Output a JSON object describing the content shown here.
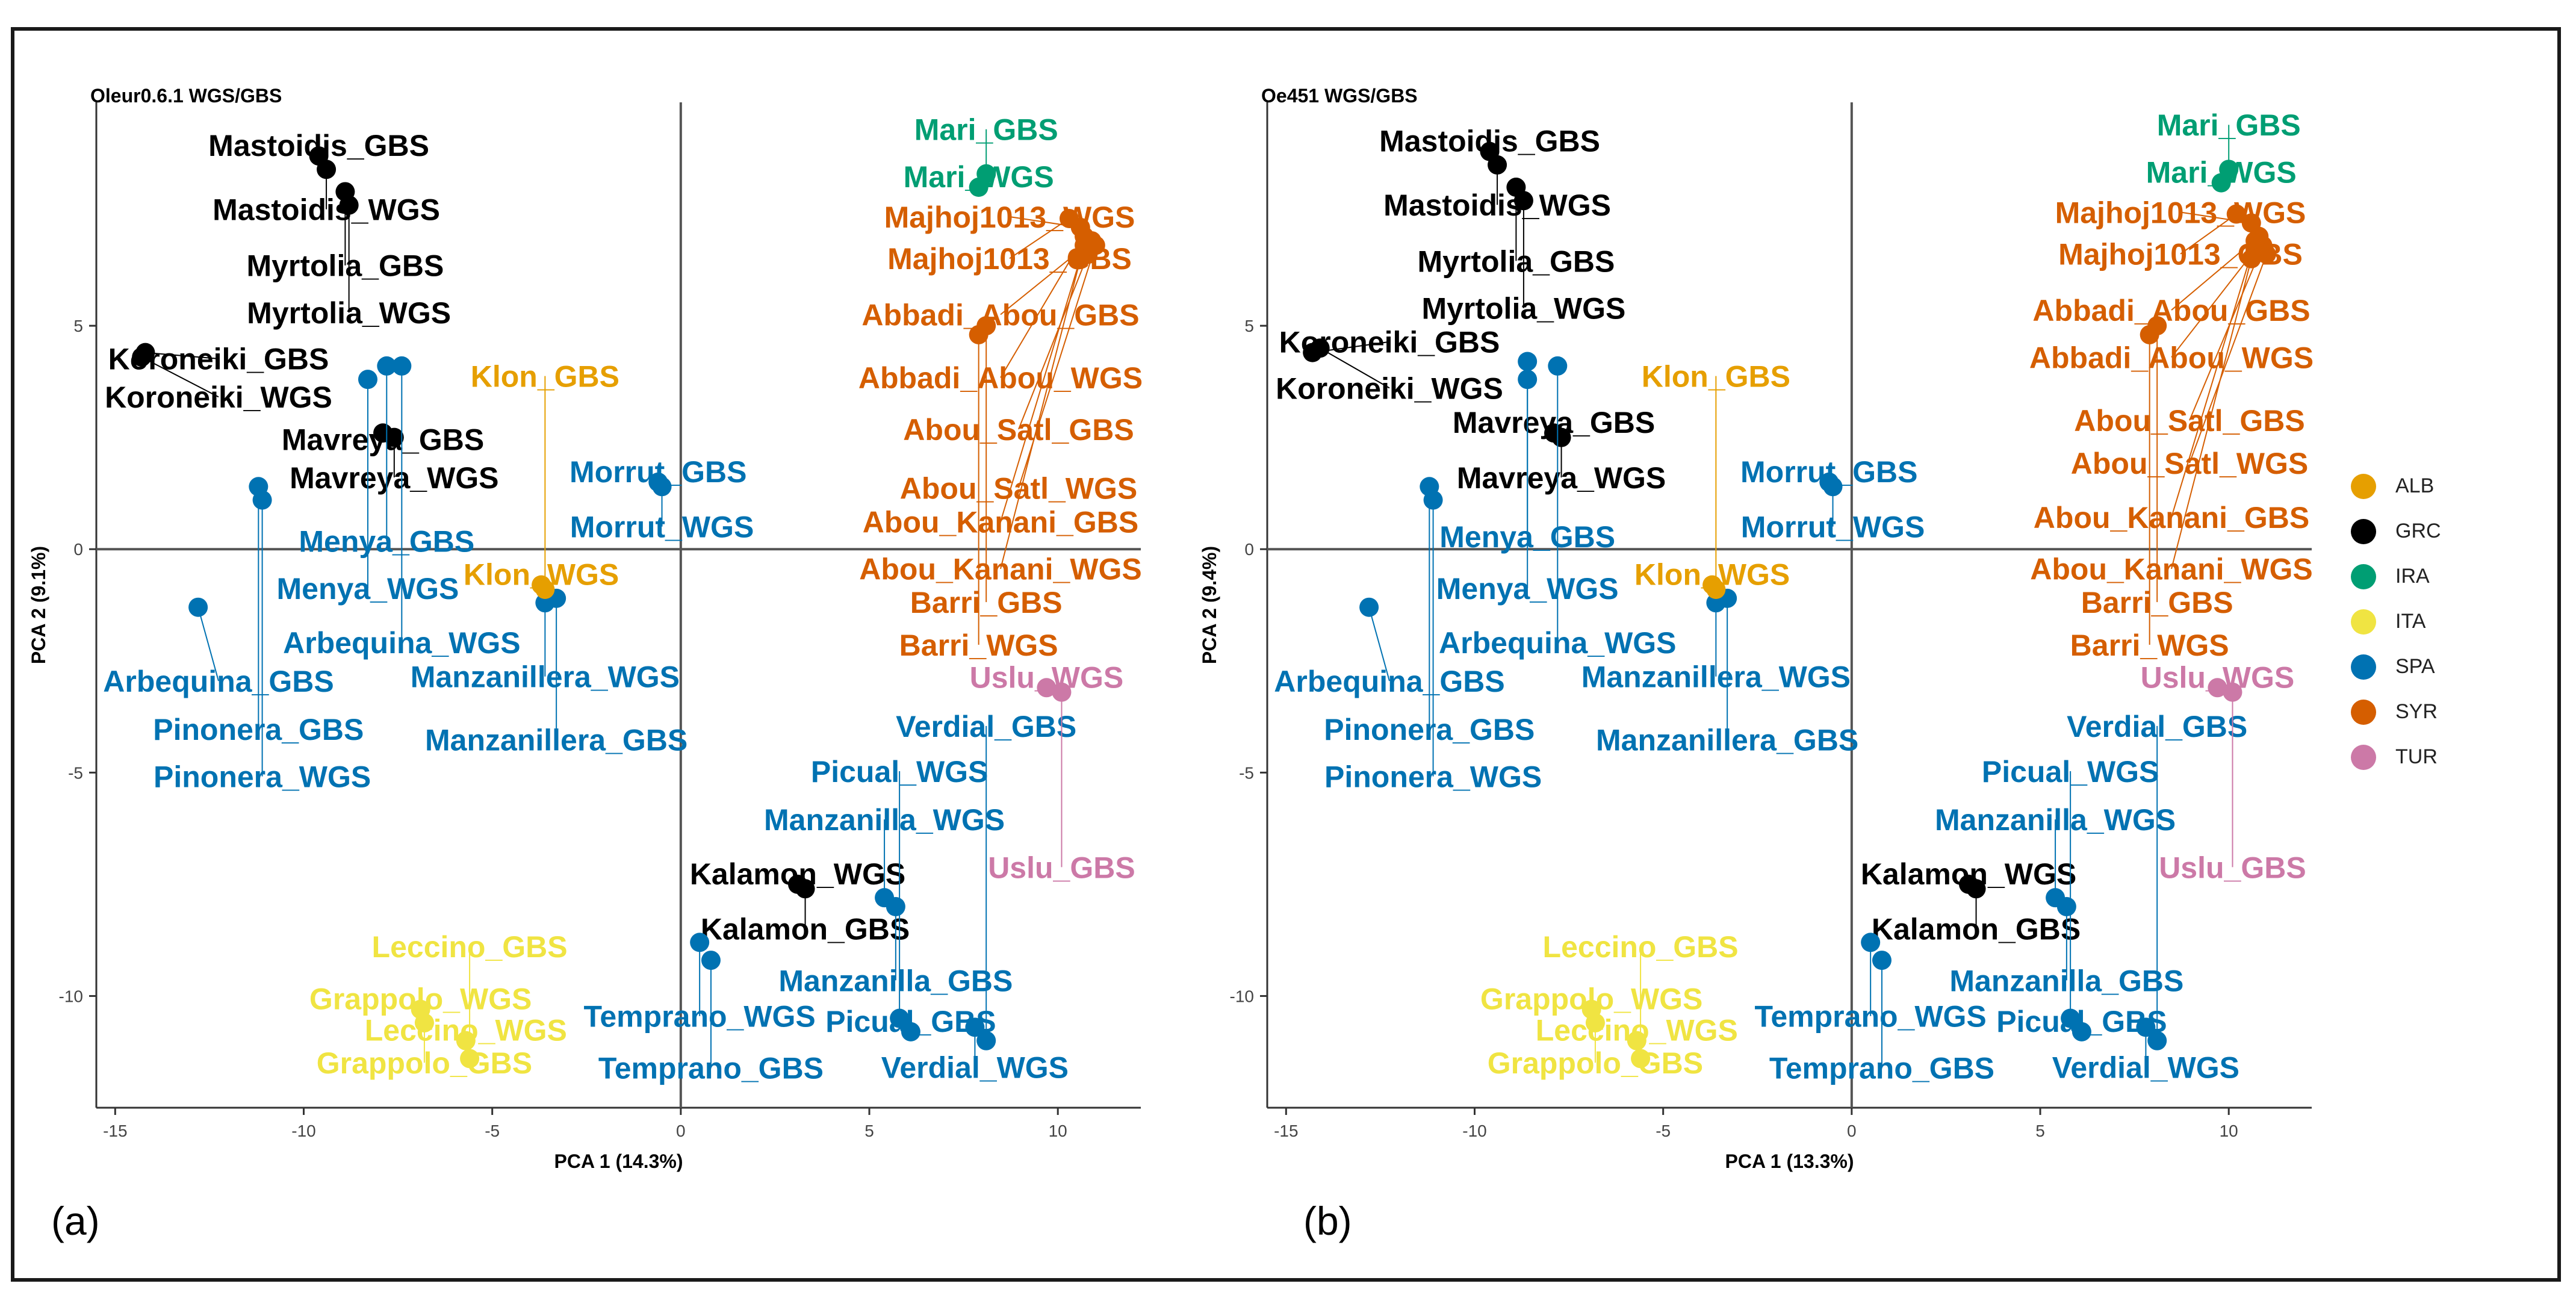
{
  "figure": {
    "panel_labels": [
      "(a)",
      "(b)"
    ]
  },
  "legend": [
    {
      "group": "ALB",
      "color": "#E69F00"
    },
    {
      "group": "GRC",
      "color": "#000000"
    },
    {
      "group": "IRA",
      "color": "#009E73"
    },
    {
      "group": "ITA",
      "color": "#F0E442"
    },
    {
      "group": "SPA",
      "color": "#0072B2"
    },
    {
      "group": "SYR",
      "color": "#D55E00"
    },
    {
      "group": "TUR",
      "color": "#CC79A7"
    }
  ],
  "chart_data": [
    {
      "type": "scatter",
      "title": "Oleur0.6.1 WGS/GBS",
      "xlabel": "PCA 1 (14.3%)",
      "ylabel": "PCA 2 (9.1%)",
      "xlim": [
        -15.5,
        12.2
      ],
      "ylim": [
        -12.5,
        10
      ],
      "xticks": [
        -15,
        -10,
        -5,
        0,
        5,
        10
      ],
      "yticks": [
        -10,
        -5,
        0,
        5
      ],
      "points": [
        {
          "label": "Mastoidis_GBS",
          "group": "GRC",
          "x": -9.6,
          "y": 8.8
        },
        {
          "label": "Mastoidis_WGS",
          "group": "GRC",
          "x": -9.4,
          "y": 8.5
        },
        {
          "label": "Myrtolia_GBS",
          "group": "GRC",
          "x": -8.9,
          "y": 8.0
        },
        {
          "label": "Myrtolia_WGS",
          "group": "GRC",
          "x": -8.8,
          "y": 7.7
        },
        {
          "label": "Koroneiki_GBS",
          "group": "GRC",
          "x": -14.2,
          "y": 4.4
        },
        {
          "label": "Koroneiki_WGS",
          "group": "GRC",
          "x": -14.3,
          "y": 4.3
        },
        {
          "label": "Mavreya_GBS",
          "group": "GRC",
          "x": -7.9,
          "y": 2.6
        },
        {
          "label": "Mavreya_WGS",
          "group": "GRC",
          "x": -7.6,
          "y": 2.5
        },
        {
          "label": "Kalamon_WGS",
          "group": "GRC",
          "x": 3.1,
          "y": -7.5
        },
        {
          "label": "Kalamon_GBS",
          "group": "GRC",
          "x": 3.3,
          "y": -7.6
        },
        {
          "label": "Mari_WGS",
          "group": "IRA",
          "x": 7.9,
          "y": 8.1
        },
        {
          "label": "Mari_GBS",
          "group": "IRA",
          "x": 8.1,
          "y": 8.4
        },
        {
          "label": "Majhoj1013_WGS",
          "group": "SYR",
          "x": 10.6,
          "y": 7.2
        },
        {
          "label": "Majhoj1013_GBS",
          "group": "SYR",
          "x": 10.3,
          "y": 7.4
        },
        {
          "label": "Abbadi_Abou_GBS",
          "group": "SYR",
          "x": 10.9,
          "y": 6.9
        },
        {
          "label": "Abbadi_Abou_WGS",
          "group": "SYR",
          "x": 10.7,
          "y": 7.0
        },
        {
          "label": "Abou_Satl_GBS",
          "group": "SYR",
          "x": 10.8,
          "y": 6.6
        },
        {
          "label": "Abou_Satl_WGS",
          "group": "SYR",
          "x": 11.0,
          "y": 6.8
        },
        {
          "label": "Abou_Kanani_GBS",
          "group": "SYR",
          "x": 10.7,
          "y": 6.8
        },
        {
          "label": "Abou_Kanani_WGS",
          "group": "SYR",
          "x": 10.6,
          "y": 6.5
        },
        {
          "label": "Barri_GBS",
          "group": "SYR",
          "x": 8.1,
          "y": 5.0
        },
        {
          "label": "Barri_WGS",
          "group": "SYR",
          "x": 7.9,
          "y": 4.8
        },
        {
          "label": "Menya_GBS",
          "group": "SPA",
          "x": -7.8,
          "y": 4.1
        },
        {
          "label": "Menya_WGS",
          "group": "SPA",
          "x": -8.3,
          "y": 3.8
        },
        {
          "label": "Arbequina_WGS",
          "group": "SPA",
          "x": -7.4,
          "y": 4.1
        },
        {
          "label": "Arbequina_GBS",
          "group": "SPA",
          "x": -12.8,
          "y": -1.3
        },
        {
          "label": "Pinonera_GBS",
          "group": "SPA",
          "x": -11.2,
          "y": 1.4
        },
        {
          "label": "Pinonera_WGS",
          "group": "SPA",
          "x": -11.1,
          "y": 1.1
        },
        {
          "label": "Morrut_GBS",
          "group": "SPA",
          "x": -0.6,
          "y": 1.5
        },
        {
          "label": "Morrut_WGS",
          "group": "SPA",
          "x": -0.5,
          "y": 1.4
        },
        {
          "label": "Manzanillera_WGS",
          "group": "SPA",
          "x": -3.6,
          "y": -1.2
        },
        {
          "label": "Manzanillera_GBS",
          "group": "SPA",
          "x": -3.3,
          "y": -1.1
        },
        {
          "label": "Manzanilla_WGS",
          "group": "SPA",
          "x": 5.4,
          "y": -7.8
        },
        {
          "label": "Manzanilla_GBS",
          "group": "SPA",
          "x": 5.7,
          "y": -8.0
        },
        {
          "label": "Temprano_WGS",
          "group": "SPA",
          "x": 0.5,
          "y": -8.8
        },
        {
          "label": "Temprano_GBS",
          "group": "SPA",
          "x": 0.8,
          "y": -9.2
        },
        {
          "label": "Picual_WGS",
          "group": "SPA",
          "x": 5.8,
          "y": -10.5
        },
        {
          "label": "Picual_GBS",
          "group": "SPA",
          "x": 6.1,
          "y": -10.8
        },
        {
          "label": "Verdial_WGS",
          "group": "SPA",
          "x": 7.8,
          "y": -10.7
        },
        {
          "label": "Verdial_GBS",
          "group": "SPA",
          "x": 8.1,
          "y": -11.0
        },
        {
          "label": "Klon_WGS",
          "group": "ALB",
          "x": -3.7,
          "y": -0.8
        },
        {
          "label": "Klon_GBS",
          "group": "ALB",
          "x": -3.6,
          "y": -0.9
        },
        {
          "label": "Uslu_WGS",
          "group": "TUR",
          "x": 9.7,
          "y": -3.1
        },
        {
          "label": "Uslu_GBS",
          "group": "TUR",
          "x": 10.1,
          "y": -3.2
        },
        {
          "label": "Grappolo_WGS",
          "group": "ITA",
          "x": -6.9,
          "y": -10.3
        },
        {
          "label": "Grappolo_GBS",
          "group": "ITA",
          "x": -6.8,
          "y": -10.6
        },
        {
          "label": "Leccino_WGS",
          "group": "ITA",
          "x": -5.7,
          "y": -11.0
        },
        {
          "label": "Leccino_GBS",
          "group": "ITA",
          "x": -5.6,
          "y": -11.4
        }
      ]
    },
    {
      "type": "scatter",
      "title": "Oe451 WGS/GBS",
      "xlabel": "PCA 1 (13.3%)",
      "ylabel": "PCA 2 (9.4%)",
      "xlim": [
        -15.5,
        12.2
      ],
      "ylim": [
        -12.5,
        10
      ],
      "xticks": [
        -15,
        -10,
        -5,
        0,
        5,
        10
      ],
      "yticks": [
        -10,
        -5,
        0,
        5
      ],
      "points": [
        {
          "label": "Mastoidis_GBS",
          "group": "GRC",
          "x": -9.6,
          "y": 8.9
        },
        {
          "label": "Mastoidis_WGS",
          "group": "GRC",
          "x": -9.4,
          "y": 8.6
        },
        {
          "label": "Myrtolia_GBS",
          "group": "GRC",
          "x": -8.9,
          "y": 8.1
        },
        {
          "label": "Myrtolia_WGS",
          "group": "GRC",
          "x": -8.7,
          "y": 7.8
        },
        {
          "label": "Koroneiki_GBS",
          "group": "GRC",
          "x": -14.3,
          "y": 4.4
        },
        {
          "label": "Koroneiki_WGS",
          "group": "GRC",
          "x": -14.1,
          "y": 4.5
        },
        {
          "label": "Mavreya_GBS",
          "group": "GRC",
          "x": -7.9,
          "y": 2.6
        },
        {
          "label": "Mavreya_WGS",
          "group": "GRC",
          "x": -7.7,
          "y": 2.5
        },
        {
          "label": "Kalamon_WGS",
          "group": "GRC",
          "x": 3.1,
          "y": -7.5
        },
        {
          "label": "Kalamon_GBS",
          "group": "GRC",
          "x": 3.3,
          "y": -7.6
        },
        {
          "label": "Mari_WGS",
          "group": "IRA",
          "x": 9.8,
          "y": 8.2
        },
        {
          "label": "Mari_GBS",
          "group": "IRA",
          "x": 10.0,
          "y": 8.5
        },
        {
          "label": "Majhoj1013_WGS",
          "group": "SYR",
          "x": 10.6,
          "y": 7.3
        },
        {
          "label": "Majhoj1013_GBS",
          "group": "SYR",
          "x": 10.2,
          "y": 7.5
        },
        {
          "label": "Abbadi_Abou_GBS",
          "group": "SYR",
          "x": 10.8,
          "y": 7.0
        },
        {
          "label": "Abbadi_Abou_WGS",
          "group": "SYR",
          "x": 10.7,
          "y": 6.7
        },
        {
          "label": "Abou_Satl_GBS",
          "group": "SYR",
          "x": 10.9,
          "y": 6.8
        },
        {
          "label": "Abou_Satl_WGS",
          "group": "SYR",
          "x": 11.0,
          "y": 6.6
        },
        {
          "label": "Abou_Kanani_GBS",
          "group": "SYR",
          "x": 10.7,
          "y": 6.9
        },
        {
          "label": "Abou_Kanani_WGS",
          "group": "SYR",
          "x": 10.6,
          "y": 6.5
        },
        {
          "label": "Barri_GBS",
          "group": "SYR",
          "x": 8.1,
          "y": 5.0
        },
        {
          "label": "Barri_WGS",
          "group": "SYR",
          "x": 7.9,
          "y": 4.8
        },
        {
          "label": "Menya_GBS",
          "group": "SPA",
          "x": -8.6,
          "y": 4.2
        },
        {
          "label": "Menya_WGS",
          "group": "SPA",
          "x": -8.6,
          "y": 3.8
        },
        {
          "label": "Arbequina_WGS",
          "group": "SPA",
          "x": -7.8,
          "y": 4.1
        },
        {
          "label": "Arbequina_GBS",
          "group": "SPA",
          "x": -12.8,
          "y": -1.3
        },
        {
          "label": "Pinonera_GBS",
          "group": "SPA",
          "x": -11.2,
          "y": 1.4
        },
        {
          "label": "Pinonera_WGS",
          "group": "SPA",
          "x": -11.1,
          "y": 1.1
        },
        {
          "label": "Morrut_GBS",
          "group": "SPA",
          "x": -0.6,
          "y": 1.5
        },
        {
          "label": "Morrut_WGS",
          "group": "SPA",
          "x": -0.5,
          "y": 1.4
        },
        {
          "label": "Manzanillera_WGS",
          "group": "SPA",
          "x": -3.6,
          "y": -1.2
        },
        {
          "label": "Manzanillera_GBS",
          "group": "SPA",
          "x": -3.3,
          "y": -1.1
        },
        {
          "label": "Manzanilla_WGS",
          "group": "SPA",
          "x": 5.4,
          "y": -7.8
        },
        {
          "label": "Manzanilla_GBS",
          "group": "SPA",
          "x": 5.7,
          "y": -8.0
        },
        {
          "label": "Temprano_WGS",
          "group": "SPA",
          "x": 0.5,
          "y": -8.8
        },
        {
          "label": "Temprano_GBS",
          "group": "SPA",
          "x": 0.8,
          "y": -9.2
        },
        {
          "label": "Picual_WGS",
          "group": "SPA",
          "x": 5.8,
          "y": -10.5
        },
        {
          "label": "Picual_GBS",
          "group": "SPA",
          "x": 6.1,
          "y": -10.8
        },
        {
          "label": "Verdial_WGS",
          "group": "SPA",
          "x": 7.8,
          "y": -10.7
        },
        {
          "label": "Verdial_GBS",
          "group": "SPA",
          "x": 8.1,
          "y": -11.0
        },
        {
          "label": "Klon_WGS",
          "group": "ALB",
          "x": -3.7,
          "y": -0.8
        },
        {
          "label": "Klon_GBS",
          "group": "ALB",
          "x": -3.6,
          "y": -0.9
        },
        {
          "label": "Uslu_WGS",
          "group": "TUR",
          "x": 9.7,
          "y": -3.1
        },
        {
          "label": "Uslu_GBS",
          "group": "TUR",
          "x": 10.1,
          "y": -3.2
        },
        {
          "label": "Grappolo_WGS",
          "group": "ITA",
          "x": -6.9,
          "y": -10.3
        },
        {
          "label": "Grappolo_GBS",
          "group": "ITA",
          "x": -6.8,
          "y": -10.6
        },
        {
          "label": "Leccino_WGS",
          "group": "ITA",
          "x": -5.7,
          "y": -11.0
        },
        {
          "label": "Leccino_GBS",
          "group": "ITA",
          "x": -5.6,
          "y": -11.4
        }
      ]
    }
  ]
}
